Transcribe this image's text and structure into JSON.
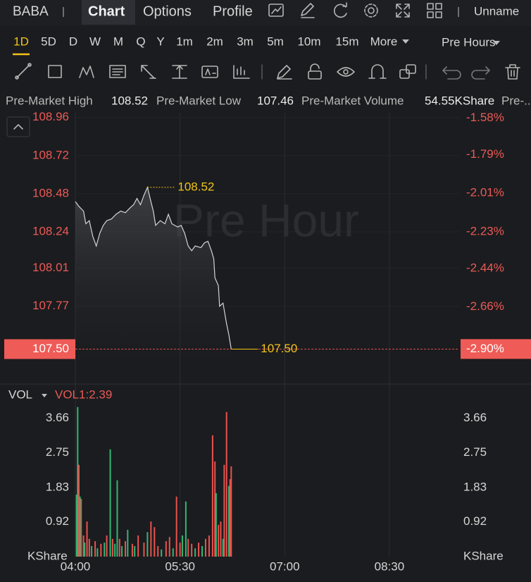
{
  "header": {
    "ticker": "BABA",
    "tabs": [
      "Chart",
      "Options",
      "Profile"
    ],
    "layout_name": "Unname"
  },
  "timeframes": [
    "1D",
    "5D",
    "D",
    "W",
    "M",
    "Q",
    "Y",
    "1m",
    "2m",
    "3m",
    "5m",
    "10m",
    "15m",
    "More"
  ],
  "session": "Pre Hours",
  "stats": [
    {
      "label": "Pre-Market High",
      "value": 108.52
    },
    {
      "label": "Pre-Market Low",
      "value": 107.46
    },
    {
      "label": "Pre-Market Volume",
      "value": "54.55KShare"
    },
    {
      "label": "Pre-..."
    }
  ],
  "price_chart": {
    "type": "line",
    "watermark": "Pre Hour",
    "color": "#d4d4d4",
    "x": [
      240,
      243,
      247,
      249,
      252,
      255,
      258,
      261,
      264,
      267,
      271,
      275,
      279,
      283,
      287,
      290,
      293,
      296,
      299,
      302,
      305,
      307,
      309,
      313,
      317,
      320,
      323,
      328,
      331,
      334,
      337,
      340,
      343,
      348,
      351,
      354,
      357,
      359,
      360,
      363,
      364,
      367,
      370,
      372,
      374
    ],
    "values": [
      108.43,
      108.4,
      108.37,
      108.29,
      108.31,
      108.21,
      108.15,
      108.23,
      108.28,
      108.31,
      108.32,
      108.35,
      108.37,
      108.36,
      108.39,
      108.41,
      108.45,
      108.41,
      108.47,
      108.52,
      108.43,
      108.37,
      108.28,
      108.31,
      108.29,
      108.35,
      108.29,
      108.27,
      108.28,
      108.23,
      108.15,
      108.12,
      108.15,
      108.14,
      108.17,
      108.18,
      108.12,
      108.07,
      107.95,
      107.9,
      107.77,
      107.79,
      107.66,
      107.59,
      107.5
    ],
    "xlim": [
      240,
      570
    ],
    "xticks": [
      {
        "value": 240,
        "label": "04:00"
      },
      {
        "value": 330,
        "label": "05:30"
      },
      {
        "value": 420,
        "label": "07:00"
      },
      {
        "value": 510,
        "label": "08:30"
      }
    ],
    "ylim": [
      107.28,
      108.99
    ],
    "yticks": [
      108.96,
      108.72,
      108.48,
      108.24,
      108.01,
      107.77
    ],
    "y2lim": [
      -3.1,
      -1.55
    ],
    "y2ticks": [
      {
        "value": -1.58,
        "label": "-1.58%"
      },
      {
        "value": -1.79,
        "label": "-1.79%"
      },
      {
        "value": -2.01,
        "label": "-2.01%"
      },
      {
        "value": -2.23,
        "label": "-2.23%"
      },
      {
        "value": -2.44,
        "label": "-2.44%"
      },
      {
        "value": -2.66,
        "label": "-2.66%"
      }
    ],
    "high_annotation": 108.52,
    "low_annotation": {
      "value": 107.5,
      "label": "107.50"
    },
    "last_price": {
      "value": 107.5,
      "label": "107.50"
    },
    "last_change": {
      "value": -2.9,
      "label": "-2.90%"
    },
    "grid": true
  },
  "volume_chart": {
    "type": "bar",
    "indicator": "VOL",
    "reading": "VOL1:2.39",
    "unit": "KShare",
    "x": [
      241,
      242,
      243,
      244,
      245,
      247,
      248,
      250,
      252,
      254,
      257,
      259,
      262,
      265,
      267,
      270,
      272,
      274,
      276,
      278,
      280,
      283,
      285,
      289,
      291,
      294,
      299,
      302,
      305,
      308,
      311,
      314,
      318,
      321,
      324,
      327,
      330,
      332,
      335,
      337,
      340,
      343,
      346,
      349,
      352,
      355,
      358,
      360,
      361,
      363,
      365,
      367,
      368,
      370,
      372,
      373,
      374
    ],
    "values": [
      1.64,
      3.96,
      2.43,
      1.59,
      1.53,
      0.56,
      0.37,
      0.93,
      0.47,
      0.28,
      0.41,
      0.22,
      0.34,
      0.37,
      0.56,
      2.84,
      0.47,
      0.34,
      2.02,
      0.47,
      0.28,
      0.41,
      0.71,
      0.34,
      0.28,
      0.56,
      0.37,
      0.65,
      0.93,
      0.78,
      0.28,
      0.19,
      0.41,
      0.52,
      0.22,
      1.59,
      0.37,
      0.56,
      1.46,
      0.47,
      0.34,
      0.22,
      0.37,
      0.28,
      0.47,
      0.56,
      3.21,
      2.52,
      1.68,
      0.84,
      0.93,
      0.47,
      2.43,
      3.83,
      1.87,
      2.05,
      2.39
    ],
    "colors": [
      "#2fb873",
      "#2fb873",
      "#e9524f",
      "#2fb873",
      "#e9524f",
      "#e9524f",
      "#2fb873",
      "#e9524f",
      "#e9524f",
      "#2fb873",
      "#e9524f",
      "#2fb873",
      "#e9524f",
      "#2fb873",
      "#e9524f",
      "#2fb873",
      "#e9524f",
      "#2fb873",
      "#2fb873",
      "#e9524f",
      "#2fb873",
      "#e9524f",
      "#2fb873",
      "#e9524f",
      "#2fb873",
      "#e9524f",
      "#e9524f",
      "#2fb873",
      "#e9524f",
      "#e9524f",
      "#e9524f",
      "#2fb873",
      "#e9524f",
      "#e9524f",
      "#2fb873",
      "#e9524f",
      "#e9524f",
      "#2fb873",
      "#2fb873",
      "#e9524f",
      "#e9524f",
      "#2fb873",
      "#e9524f",
      "#2fb873",
      "#e9524f",
      "#e9524f",
      "#e9524f",
      "#e9524f",
      "#2fb873",
      "#e9524f",
      "#e9524f",
      "#2fb873",
      "#e9524f",
      "#e9524f",
      "#2fb873",
      "#e9524f",
      "#e9524f"
    ],
    "ylim": [
      0,
      4.01
    ],
    "yticks": [
      0.92,
      1.83,
      2.75,
      3.66
    ]
  }
}
